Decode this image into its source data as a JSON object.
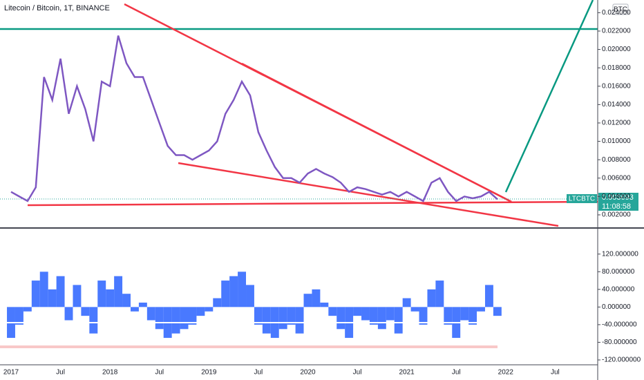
{
  "header": {
    "title": "Litecoin / Bitcoin, 1T, BINANCE",
    "badge": "BTC"
  },
  "price_tag": {
    "symbol": "LTCBTC",
    "price": "0.003693",
    "countdown": "11:08:58"
  },
  "chart_data": [
    {
      "type": "line",
      "color": "#7e57c2",
      "categories": [
        "2017",
        null,
        null,
        null,
        null,
        null,
        "Jul",
        null,
        null,
        null,
        null,
        null,
        "2018",
        null,
        null,
        null,
        null,
        null,
        "Jul",
        null,
        null,
        null,
        null,
        null,
        "2019",
        null,
        null,
        null,
        null,
        null,
        "Jul",
        null,
        null,
        null,
        null,
        null,
        "2020",
        null,
        null,
        null,
        null,
        null,
        "Jul",
        null,
        null,
        null,
        null,
        null,
        "2021",
        null,
        null,
        null,
        null,
        null,
        "Jul",
        null,
        null,
        null,
        null,
        null,
        "2022",
        null,
        null,
        null,
        null,
        null,
        "Jul",
        null,
        null,
        null,
        null,
        null
      ],
      "values": [
        0.0045,
        0.004,
        0.0035,
        0.005,
        0.017,
        0.0145,
        0.019,
        0.013,
        0.016,
        0.0135,
        0.01,
        0.0165,
        0.016,
        0.0215,
        0.0185,
        0.017,
        0.017,
        0.0145,
        0.012,
        0.0095,
        0.0085,
        0.0085,
        0.008,
        0.0085,
        0.009,
        0.01,
        0.013,
        0.0145,
        0.0165,
        0.015,
        0.011,
        0.009,
        0.0072,
        0.006,
        0.006,
        0.0055,
        0.0065,
        0.007,
        0.0065,
        0.0061,
        0.0055,
        0.0045,
        0.005,
        0.0048,
        0.0045,
        0.0042,
        0.0045,
        0.004,
        0.0045,
        0.004,
        0.0035,
        0.0055,
        0.006,
        0.0045,
        0.0035,
        0.004,
        0.0038,
        0.004,
        0.0045,
        0.0037,
        null,
        null,
        null,
        null,
        null,
        null,
        null,
        null,
        null,
        null,
        null,
        null
      ],
      "ylim": [
        0.00072,
        0.02538
      ],
      "yticks": [
        {
          "value": 0.002,
          "label": "0.002000"
        },
        {
          "value": 0.004,
          "label": "0.004000"
        },
        {
          "value": 0.006,
          "label": "0.006000"
        },
        {
          "value": 0.008,
          "label": "0.008000"
        },
        {
          "value": 0.01,
          "label": "0.010000"
        },
        {
          "value": 0.012,
          "label": "0.012000"
        },
        {
          "value": 0.014,
          "label": "0.014000"
        },
        {
          "value": 0.016,
          "label": "0.016000"
        },
        {
          "value": 0.018,
          "label": "0.018000"
        },
        {
          "value": 0.02,
          "label": "0.020000"
        },
        {
          "value": 0.022,
          "label": "0.022000"
        },
        {
          "value": 0.024,
          "label": "0.024000"
        }
      ]
    },
    {
      "type": "area",
      "color": "#2962ff",
      "values": [
        -70,
        -40,
        -10,
        60,
        80,
        40,
        70,
        -30,
        50,
        -20,
        -60,
        60,
        40,
        70,
        30,
        -10,
        10,
        -30,
        -50,
        -70,
        -60,
        -50,
        -40,
        -20,
        -10,
        20,
        60,
        70,
        80,
        50,
        -40,
        -60,
        -70,
        -50,
        -40,
        -60,
        30,
        40,
        10,
        -20,
        -50,
        -70,
        -20,
        -30,
        -40,
        -50,
        -30,
        -60,
        20,
        -10,
        -40,
        40,
        60,
        -40,
        -70,
        -30,
        -40,
        -10,
        50,
        -20,
        null,
        null,
        null,
        null,
        null,
        null,
        null,
        null,
        null,
        null,
        null,
        null
      ],
      "ylim": [
        -131,
        176
      ],
      "yticks": [
        {
          "value": 120,
          "label": "120.000000"
        },
        {
          "value": 80,
          "label": "80.000000"
        },
        {
          "value": 40,
          "label": "40.000000"
        },
        {
          "value": 0,
          "label": "0.000000"
        },
        {
          "value": -40,
          "label": "-40.000000"
        },
        {
          "value": -80,
          "label": "-80.000000"
        },
        {
          "value": -120,
          "label": "-120.000000"
        }
      ]
    }
  ]
}
